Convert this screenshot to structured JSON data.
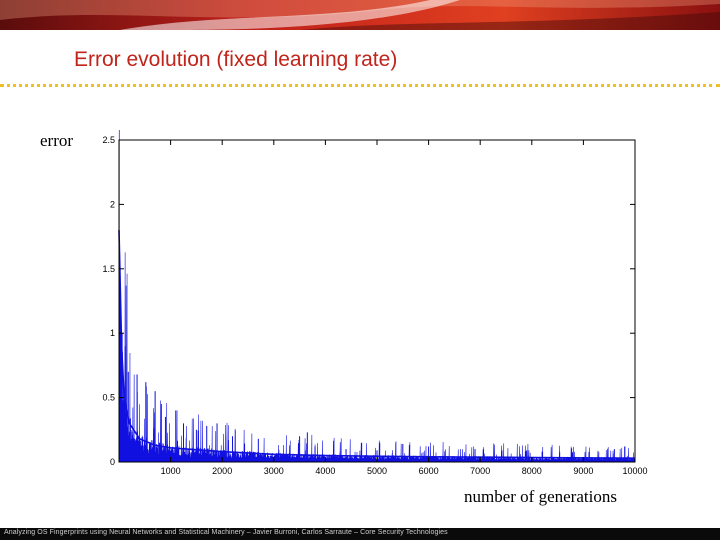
{
  "slide": {
    "title": "Error evolution (fixed learning rate)",
    "y_caption": "error",
    "x_caption": "number of generations",
    "footer": "Analyzing OS Fingerprints using Neural Networks and Statistical Machinery – Javier Burroni, Carlos Sarraute – Core Security Technologies"
  },
  "colors": {
    "title": "#c0241a",
    "rule": "#f0c020",
    "series": "#1010e0",
    "footer_bg": "#0a0a0a"
  },
  "chart_data": {
    "type": "line",
    "xlim": [
      0,
      10000
    ],
    "ylim": [
      0,
      2.5
    ],
    "x_ticks": [
      1000,
      2000,
      3000,
      4000,
      5000,
      6000,
      7000,
      8000,
      9000,
      10000
    ],
    "x_tick_labels": [
      "1000",
      "2000",
      "3000",
      "4000",
      "5000",
      "6000",
      "7000",
      "8000",
      "9000",
      "10000"
    ],
    "y_ticks": [
      0,
      0.5,
      1,
      1.5,
      2,
      2.5
    ],
    "y_tick_labels": [
      "0",
      "0.5",
      "1",
      "1.5",
      "2",
      "2.5"
    ],
    "grid": false,
    "series": [
      {
        "name": "",
        "baseline": [
          [
            0,
            1.8
          ],
          [
            50,
            0.9
          ],
          [
            100,
            0.5
          ],
          [
            200,
            0.3
          ],
          [
            400,
            0.18
          ],
          [
            700,
            0.13
          ],
          [
            1000,
            0.11
          ],
          [
            2000,
            0.08
          ],
          [
            3000,
            0.06
          ],
          [
            4000,
            0.05
          ],
          [
            6000,
            0.04
          ],
          [
            8000,
            0.035
          ],
          [
            10000,
            0.03
          ]
        ],
        "spikes": [
          [
            60,
            1.0
          ],
          [
            120,
            0.9
          ],
          [
            180,
            0.7
          ],
          [
            350,
            0.68
          ],
          [
            520,
            0.62
          ],
          [
            700,
            0.55
          ],
          [
            820,
            0.45
          ],
          [
            900,
            0.35
          ],
          [
            1100,
            0.4
          ],
          [
            1250,
            0.3
          ],
          [
            1500,
            0.25
          ],
          [
            1700,
            0.28
          ],
          [
            1900,
            0.3
          ],
          [
            2200,
            0.2
          ],
          [
            2700,
            0.18
          ],
          [
            3500,
            0.2
          ],
          [
            3650,
            0.23
          ],
          [
            3800,
            0.12
          ],
          [
            4400,
            0.1
          ],
          [
            5000,
            0.09
          ],
          [
            5500,
            0.14
          ],
          [
            6000,
            0.12
          ],
          [
            6900,
            0.1
          ],
          [
            7900,
            0.09
          ],
          [
            8200,
            0.08
          ],
          [
            9600,
            0.1
          ],
          [
            9800,
            0.12
          ]
        ]
      }
    ]
  }
}
